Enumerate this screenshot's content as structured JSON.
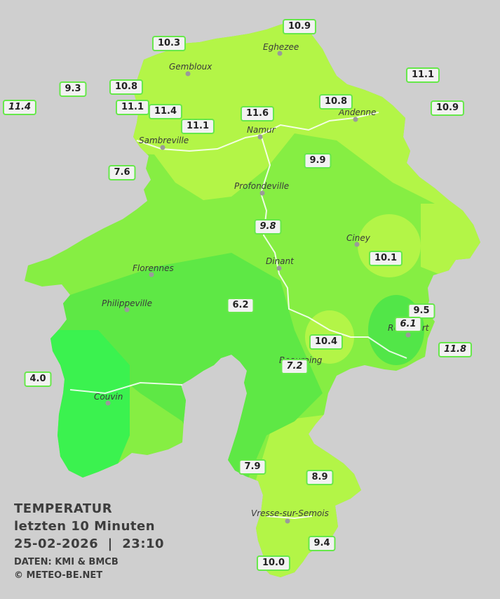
{
  "legend": {
    "title": "TEMPERATUR",
    "subtitle": "letzten 10 Minuten",
    "datetime": "25-02-2026  |  23:10",
    "source": "DATEN: KMI & BMCB",
    "copyright": "© METEO-BE.NET"
  },
  "cities": [
    "Eghezee",
    "Gembloux",
    "Andenne",
    "Namur",
    "Sambreville",
    "Profondeville",
    "Ciney",
    "Dinant",
    "Florennes",
    "Philippeville",
    "Couvin",
    "Vresse-sur-Semois",
    "Beauraing",
    "Rochefort"
  ],
  "stations": [
    "10.9",
    "10.3",
    "11.1",
    "9.3",
    "10.8",
    "11.4",
    "10.8",
    "10.9",
    "11.1",
    "11.4",
    "11.6",
    "11.1",
    "9.9",
    "7.6",
    "9.8",
    "10.1",
    "6.2",
    "9.5",
    "6.1",
    "10.4",
    "11.8",
    "7.2",
    "4.0",
    "7.9",
    "8.9",
    "9.4",
    "10.0"
  ],
  "colors": {
    "background": "#cfcfcf",
    "warm": "#b3f547",
    "mid": "#86ee43",
    "cool": "#52e648",
    "cold": "#3bf24f",
    "label_border": "#66e84a"
  }
}
